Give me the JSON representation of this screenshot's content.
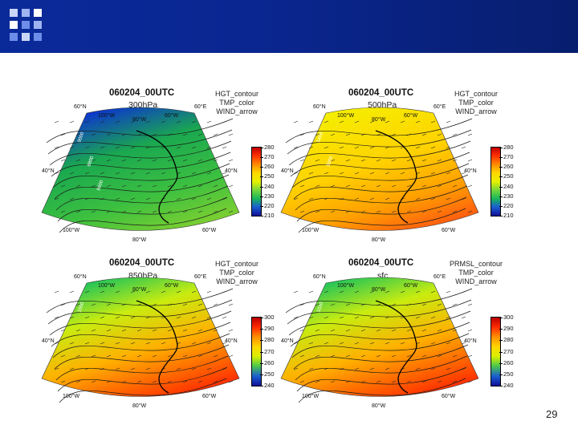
{
  "slide": {
    "page_number": "29"
  },
  "colors": {
    "header": "#0b2a9a",
    "header_squares": [
      "#6e8de8",
      "#9fb4f0",
      "#c9d6f8",
      "#ffffff"
    ]
  },
  "panels": [
    {
      "id": "p300",
      "title": "060204_00UTC",
      "level": "300hPa",
      "vars": [
        "HGT_contour",
        "TMP_color",
        "WIND_arrow"
      ],
      "colorbar_ticks": [
        "280",
        "270",
        "260",
        "250",
        "240",
        "230",
        "220",
        "210"
      ],
      "colormap": "cold",
      "lat_labels_left": [
        "60°N",
        "40°N",
        "100°W"
      ],
      "lat_labels_right": [
        "60°E",
        "40°N",
        "60°W"
      ],
      "lon_labels_top": [
        "100°W",
        "80°W",
        "60°W"
      ],
      "lon_label_bottom": "80°W",
      "contour_labels": [
        "9000",
        "8800",
        "8600"
      ]
    },
    {
      "id": "p500",
      "title": "060204_00UTC",
      "level": "500hPa",
      "vars": [
        "HGT_contour",
        "TMP_color",
        "WIND_arrow"
      ],
      "colorbar_ticks": [
        "280",
        "270",
        "260",
        "250",
        "240",
        "230",
        "220",
        "210"
      ],
      "colormap": "mid",
      "lat_labels_left": [
        "60°N",
        "40°N",
        "100°W"
      ],
      "lat_labels_right": [
        "60°E",
        "40°N",
        "60°W"
      ],
      "lon_labels_top": [
        "100°W",
        "80°W",
        "60°W"
      ],
      "lon_label_bottom": "80°W",
      "contour_labels": [
        "5400",
        "5500"
      ]
    },
    {
      "id": "p850",
      "title": "060204_00UTC",
      "level": "850hPa",
      "vars": [
        "HGT_contour",
        "TMP_color",
        "WIND_arrow"
      ],
      "colorbar_ticks": [
        "300",
        "290",
        "280",
        "270",
        "260",
        "250",
        "240"
      ],
      "colormap": "warm",
      "lat_labels_left": [
        "60°N",
        "40°N",
        "100°W"
      ],
      "lat_labels_right": [
        "60°E",
        "40°N",
        "60°W"
      ],
      "lon_labels_top": [
        "100°W",
        "80°W",
        "60°W"
      ],
      "lon_label_bottom": "80°W",
      "contour_labels": [
        "1500"
      ]
    },
    {
      "id": "psfc",
      "title": "060204_00UTC",
      "level": "sfc",
      "vars": [
        "PRMSL_contour",
        "TMP_color",
        "WIND_arrow"
      ],
      "colorbar_ticks": [
        "300",
        "290",
        "280",
        "270",
        "260",
        "250",
        "240"
      ],
      "colormap": "warm",
      "lat_labels_left": [
        "60°N",
        "40°N",
        "100°W"
      ],
      "lat_labels_right": [
        "60°E",
        "40°N",
        "60°W"
      ],
      "lon_labels_top": [
        "100°W",
        "80°W",
        "60°W"
      ],
      "lon_label_bottom": "80°W",
      "contour_labels": [
        "1020"
      ]
    }
  ]
}
